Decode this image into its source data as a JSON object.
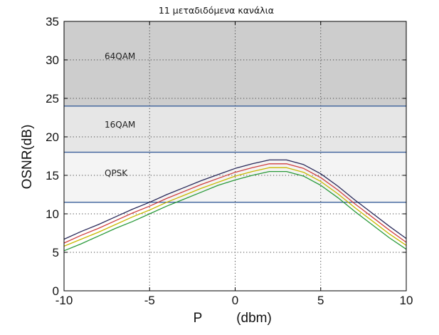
{
  "chart_data": {
    "type": "line",
    "title": "11 μεταδιδόμενα κανάλια",
    "xlabel_start": "P",
    "xlabel_end": "(dbm)",
    "ylabel": "OSNR(dB)",
    "xlim": [
      -10,
      10
    ],
    "ylim": [
      0,
      35
    ],
    "xticks": [
      -10,
      -5,
      0,
      5,
      10
    ],
    "yticks": [
      0,
      5,
      10,
      15,
      20,
      25,
      30,
      35
    ],
    "grid": true,
    "regions": [
      {
        "label": "64QAM",
        "y0": 24,
        "y1": 35,
        "color": "#cdcdcd"
      },
      {
        "label": "16QAM",
        "y0": 18,
        "y1": 24,
        "color": "#e6e6e6"
      },
      {
        "label": "QPSK",
        "y0": 11.5,
        "y1": 18,
        "color": "#f4f4f4"
      }
    ],
    "threshold_lines": [
      11.5,
      18,
      24
    ],
    "x": [
      -10,
      -9,
      -8,
      -7,
      -6,
      -5,
      -4,
      -3,
      -2,
      -1,
      0,
      1,
      2,
      3,
      4,
      5,
      6,
      7,
      8,
      9,
      10
    ],
    "series": [
      {
        "color": "#2a2a5a",
        "values": [
          6.7,
          7.7,
          8.6,
          9.6,
          10.6,
          11.5,
          12.5,
          13.4,
          14.3,
          15.1,
          15.9,
          16.5,
          17.0,
          17.0,
          16.4,
          15.2,
          13.6,
          11.8,
          10.1,
          8.4,
          6.8
        ]
      },
      {
        "color": "#d04040",
        "values": [
          6.2,
          7.2,
          8.1,
          9.1,
          10.1,
          11.0,
          12.0,
          12.9,
          13.8,
          14.6,
          15.4,
          16.0,
          16.5,
          16.5,
          15.9,
          14.7,
          13.1,
          11.3,
          9.6,
          7.9,
          6.3
        ]
      },
      {
        "color": "#c8b800",
        "values": [
          5.8,
          6.7,
          7.6,
          8.6,
          9.6,
          10.5,
          11.5,
          12.4,
          13.3,
          14.1,
          14.9,
          15.5,
          16.0,
          16.0,
          15.4,
          14.2,
          12.6,
          10.8,
          9.1,
          7.4,
          5.9
        ]
      },
      {
        "color": "#2a9a3a",
        "values": [
          5.2,
          6.1,
          7.1,
          8.1,
          9.0,
          10.0,
          11.0,
          11.9,
          12.8,
          13.7,
          14.4,
          15.0,
          15.5,
          15.5,
          14.9,
          13.7,
          12.1,
          10.3,
          8.6,
          6.9,
          5.4
        ]
      }
    ]
  }
}
